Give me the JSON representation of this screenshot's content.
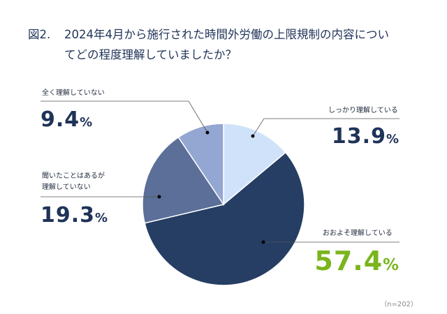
{
  "title": {
    "fig_label": "図2.",
    "line1": "2024年4月から施行された時間外労働の上限規制の内容につい",
    "line2": "てどの程度理解していましたか？"
  },
  "sample_note": "（n=202）",
  "chart_data": {
    "type": "pie",
    "title": "2024年4月から施行された時間外労働の上限規制の内容についてどの程度理解していましたか？",
    "start": "top, clockwise",
    "slices": [
      {
        "label": "しっかり理解している",
        "value": 13.9,
        "display": "13.9",
        "color": "#d0e2fa",
        "value_color": "#1f3358"
      },
      {
        "label": "おおよそ理解している",
        "value": 57.4,
        "display": "57.4",
        "color": "#263e63",
        "value_color": "#7ab51d"
      },
      {
        "label_lines": [
          "聞いたことはあるが",
          "理解していない"
        ],
        "label": "聞いたことはあるが理解していない",
        "value": 19.3,
        "display": "19.3",
        "color": "#5b6f98",
        "value_color": "#1f3358"
      },
      {
        "label": "全く理解していない",
        "value": 9.4,
        "display": "9.4",
        "color": "#94a7d3",
        "value_color": "#1f3358"
      }
    ],
    "unit": "%"
  }
}
